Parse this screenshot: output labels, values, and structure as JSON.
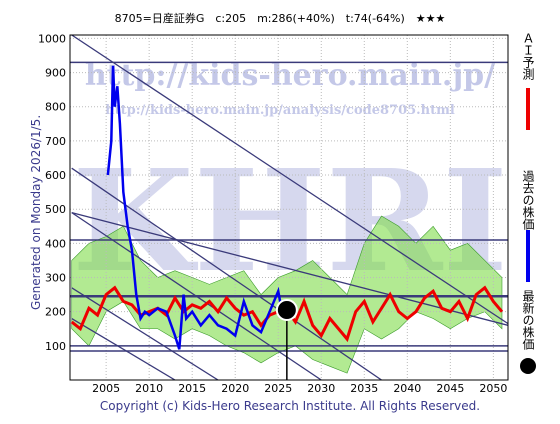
{
  "chart_data": {
    "type": "line",
    "title": "8705=日産証券G　c:205　m:286(+40%)　t:74(-64%)　★★★",
    "side_note": "Generated on Monday 2026/1/5.",
    "footer": "Copyright (c) Kids-Hero Research Institute. All Rights Reserved.",
    "watermarks": [
      "http://kids-hero.main.jp/",
      "http://kids-hero.main.jp/analysis/code8705.html",
      "KHRI"
    ],
    "xlim": [
      2000.8,
      2051.7
    ],
    "ylim": [
      0,
      1010
    ],
    "xticks": [
      2005,
      2010,
      2015,
      2020,
      2025,
      2030,
      2035,
      2040,
      2045,
      2050
    ],
    "yticks": [
      100,
      200,
      300,
      400,
      500,
      600,
      700,
      800,
      900,
      1000
    ],
    "grid": true,
    "band": {
      "color": "#7fdc4a",
      "x": [
        2001,
        2003,
        2005,
        2007,
        2009,
        2011,
        2013,
        2015,
        2017,
        2019,
        2021,
        2023,
        2025,
        2027,
        2029,
        2031,
        2033,
        2035,
        2037,
        2039,
        2041,
        2043,
        2045,
        2047,
        2049,
        2051
      ],
      "upper": [
        350,
        400,
        420,
        450,
        350,
        300,
        320,
        300,
        280,
        300,
        320,
        250,
        300,
        320,
        350,
        300,
        250,
        400,
        480,
        450,
        400,
        450,
        380,
        400,
        350,
        300
      ],
      "lower": [
        150,
        100,
        200,
        230,
        150,
        150,
        120,
        150,
        130,
        100,
        80,
        50,
        80,
        100,
        60,
        40,
        20,
        150,
        120,
        150,
        200,
        180,
        150,
        180,
        200,
        150
      ]
    },
    "hlines": [
      930,
      410,
      245,
      100,
      85
    ],
    "trend_lines": [
      [
        2001,
        1010,
        2051.7,
        165
      ],
      [
        2001,
        620,
        2037,
        0
      ],
      [
        2001,
        490,
        2030,
        0
      ],
      [
        2001,
        270,
        2018,
        0
      ],
      [
        2001,
        180,
        2013,
        0
      ],
      [
        2001,
        490,
        2051.7,
        160
      ]
    ],
    "latest": {
      "x": 2026,
      "value": 205
    },
    "series": [
      {
        "name": "ＡＩ予測",
        "color": "#ee0000",
        "x": [
          2001,
          2002,
          2003,
          2004,
          2005,
          2006,
          2007,
          2008,
          2009,
          2010,
          2011,
          2012,
          2013,
          2014,
          2015,
          2016,
          2017,
          2018,
          2019,
          2020,
          2021,
          2022,
          2023,
          2024,
          2025,
          2026,
          2027,
          2028,
          2029,
          2030,
          2031,
          2032,
          2033,
          2034,
          2035,
          2036,
          2037,
          2038,
          2039,
          2040,
          2041,
          2042,
          2043,
          2044,
          2045,
          2046,
          2047,
          2048,
          2049,
          2050,
          2051
        ],
        "values": [
          170,
          150,
          210,
          190,
          250,
          270,
          230,
          220,
          190,
          200,
          210,
          190,
          240,
          200,
          220,
          210,
          230,
          200,
          240,
          210,
          190,
          200,
          160,
          190,
          200,
          205,
          170,
          230,
          160,
          130,
          180,
          150,
          120,
          200,
          230,
          170,
          210,
          250,
          200,
          180,
          200,
          240,
          260,
          210,
          200,
          230,
          180,
          250,
          270,
          230,
          200
        ]
      },
      {
        "name": "過去の株価",
        "color": "#0000ee",
        "x": [
          2005.2,
          2005.6,
          2005.8,
          2006,
          2006.3,
          2006.6,
          2007,
          2007.5,
          2008,
          2008.5,
          2009,
          2009.5,
          2010,
          2011,
          2012,
          2013,
          2013.5,
          2014,
          2014.3,
          2015,
          2016,
          2017,
          2018,
          2019,
          2020,
          2021,
          2022,
          2023,
          2024,
          2025,
          2025.5,
          2026
        ],
        "values": [
          600,
          700,
          920,
          800,
          860,
          750,
          550,
          450,
          380,
          250,
          180,
          200,
          190,
          210,
          200,
          130,
          90,
          250,
          180,
          200,
          160,
          190,
          160,
          150,
          130,
          230,
          160,
          140,
          200,
          260,
          190,
          205
        ]
      }
    ],
    "latest_label": "最新の株価"
  }
}
